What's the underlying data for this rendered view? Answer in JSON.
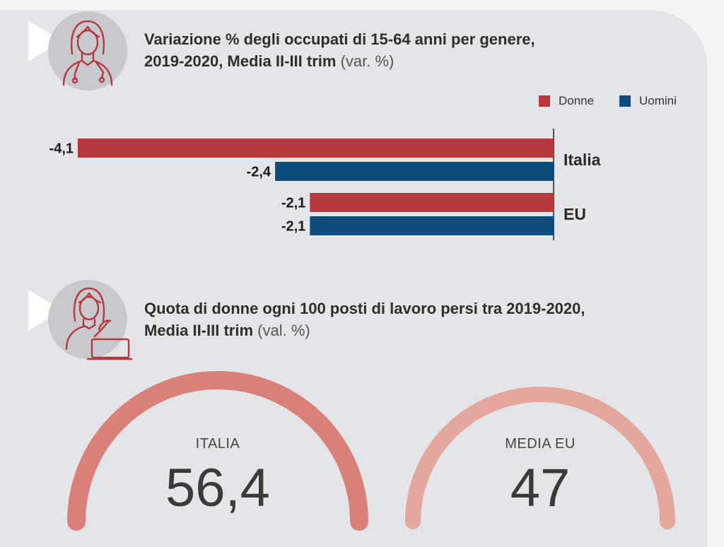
{
  "section1": {
    "title_line1": "Variazione % degli occupati di 15-64 anni per genere,",
    "title_line2": "2019-2020, Media II-III trim",
    "title_unit": "(var. %)"
  },
  "legend": [
    {
      "label": "Donne",
      "color": "#b5393c"
    },
    {
      "label": "Uomini",
      "color": "#0f4c7e"
    }
  ],
  "section2": {
    "title_line1": "Quota di donne ogni 100 posti di lavoro persi tra 2019-2020,",
    "title_line2": "Media II-III trim",
    "title_unit": "(val. %)"
  },
  "chart_data": [
    {
      "type": "bar",
      "orientation": "horizontal",
      "categories": [
        "Italia",
        "EU"
      ],
      "series": [
        {
          "name": "Donne",
          "values": [
            -4.1,
            -2.1
          ],
          "labels": [
            "-4,1",
            "-2,1"
          ],
          "color": "#b5393c"
        },
        {
          "name": "Uomini",
          "values": [
            -2.4,
            -2.1
          ],
          "labels": [
            "-2,4",
            "-2,1"
          ],
          "color": "#0f4c7e"
        }
      ],
      "xlim": [
        -4.1,
        0
      ],
      "legend": "top-right"
    },
    {
      "type": "gauge",
      "items": [
        {
          "label": "ITALIA",
          "value": 56.4,
          "display": "56,4",
          "color": "#d98079"
        },
        {
          "label": "MEDIA EU",
          "value": 47,
          "display": "47",
          "color": "#e3a79d"
        }
      ]
    }
  ]
}
